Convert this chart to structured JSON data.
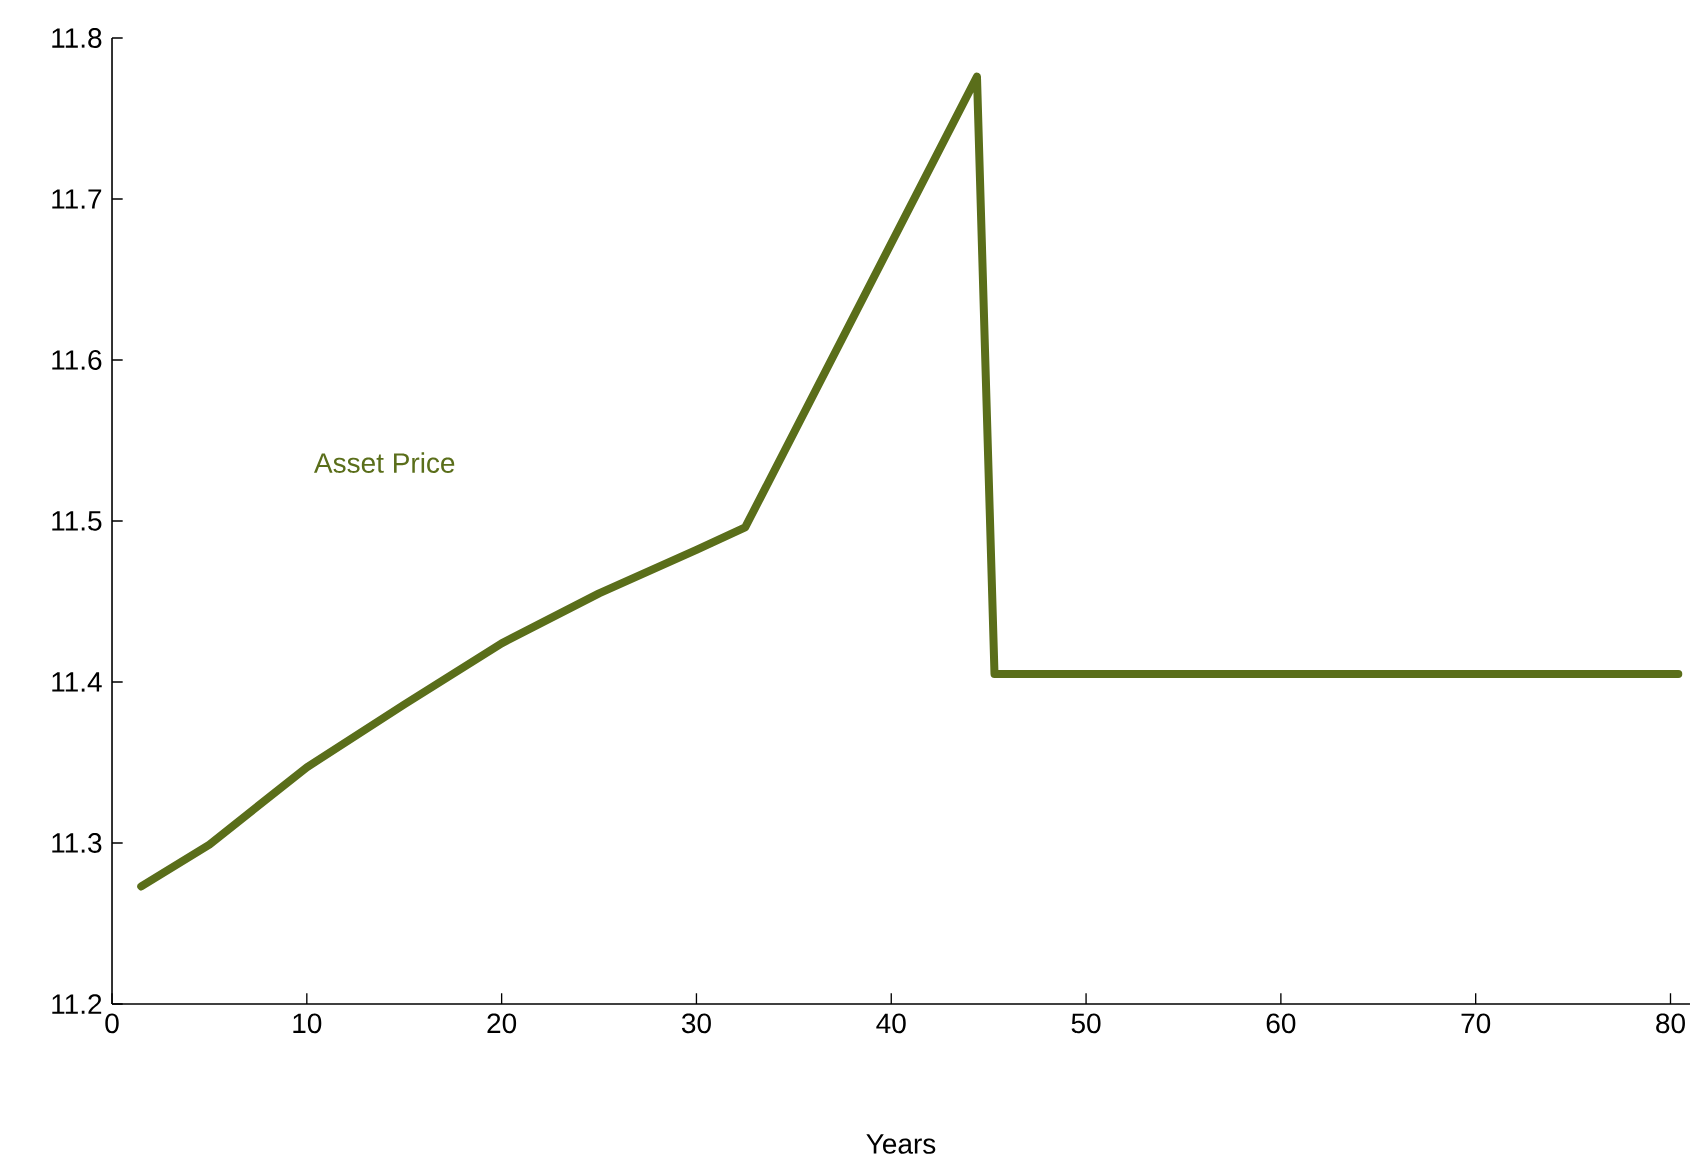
{
  "chart_data": {
    "type": "line",
    "xlabel": "Years",
    "series": [
      {
        "name": "Asset Price",
        "color": "#5a6e1a",
        "x": [
          1.5,
          5,
          10,
          15,
          20,
          25,
          30,
          32.5,
          44.4,
          45.3,
          80.4
        ],
        "values": [
          11.273,
          11.299,
          11.347,
          11.386,
          11.424,
          11.455,
          11.482,
          11.496,
          11.776,
          11.405,
          11.405
        ]
      }
    ],
    "xlim": [
      0,
      81
    ],
    "ylim": [
      11.2,
      11.8
    ],
    "xticks": [
      0,
      10,
      20,
      30,
      40,
      50,
      60,
      70,
      80
    ],
    "yticks": [
      {
        "value": 11.2,
        "label": "11.2"
      },
      {
        "value": 11.3,
        "label": "11.3"
      },
      {
        "value": 11.4,
        "label": "11.4"
      },
      {
        "value": 11.5,
        "label": "11.5"
      },
      {
        "value": 11.6,
        "label": "11.6"
      },
      {
        "value": 11.7,
        "label": "11.7"
      },
      {
        "value": 11.8,
        "label": "11.8"
      }
    ],
    "grid": false,
    "marker": "none",
    "line_style": "solid"
  }
}
